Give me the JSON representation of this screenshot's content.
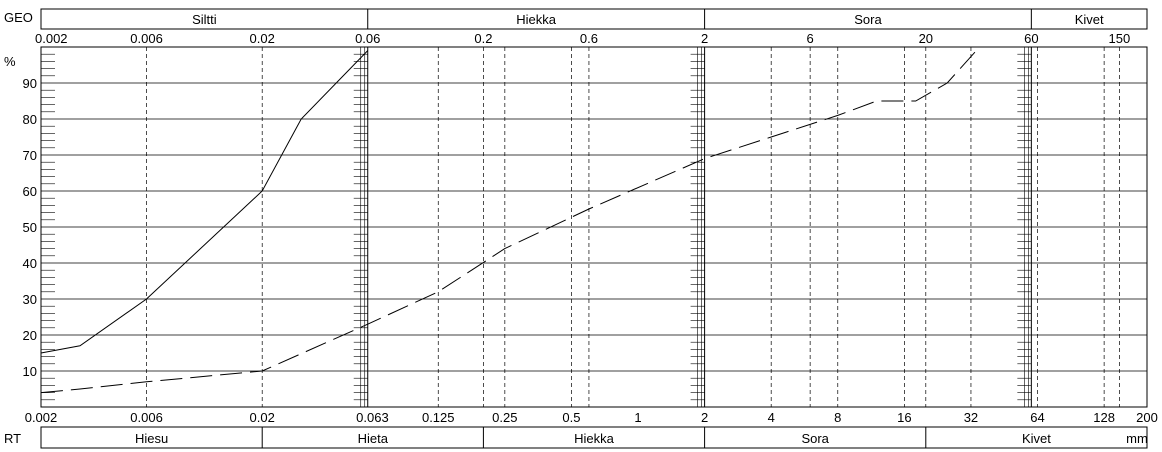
{
  "chart_data": {
    "type": "line",
    "title": "",
    "x_scale": "log",
    "xlim": [
      0.002,
      200
    ],
    "ylim": [
      0,
      100
    ],
    "ylabel": "%",
    "y_ticks": [
      10,
      20,
      30,
      40,
      50,
      60,
      70,
      80,
      90
    ],
    "grid": true,
    "top_header_label": "GEO",
    "top_classes": [
      {
        "label": "Siltti",
        "from": 0.002,
        "to": 0.06
      },
      {
        "label": "Hiekka",
        "from": 0.06,
        "to": 2
      },
      {
        "label": "Sora",
        "from": 2,
        "to": 60
      },
      {
        "label": "Kivet",
        "from": 60,
        "to": 200
      }
    ],
    "top_ticks": [
      {
        "label": "0.002",
        "x": 0.002
      },
      {
        "label": "0.006",
        "x": 0.006
      },
      {
        "label": "0.02",
        "x": 0.02
      },
      {
        "label": "0.06",
        "x": 0.06
      },
      {
        "label": "0.2",
        "x": 0.2
      },
      {
        "label": "0.6",
        "x": 0.6
      },
      {
        "label": "2",
        "x": 2
      },
      {
        "label": "6",
        "x": 6
      },
      {
        "label": "20",
        "x": 20
      },
      {
        "label": "60",
        "x": 60
      },
      {
        "label": "150",
        "x": 150
      }
    ],
    "bottom_header_label": "RT",
    "bottom_classes": [
      {
        "label": "Hiesu",
        "from": 0.002,
        "to": 0.02
      },
      {
        "label": "Hieta",
        "from": 0.02,
        "to": 0.2
      },
      {
        "label": "Hiekka",
        "from": 0.2,
        "to": 2
      },
      {
        "label": "Sora",
        "from": 2,
        "to": 20
      },
      {
        "label": "Kivet",
        "from": 20,
        "to": 200
      }
    ],
    "bottom_unit": "mm",
    "bottom_ticks": [
      {
        "label": "0.002",
        "x": 0.002
      },
      {
        "label": "0.006",
        "x": 0.006
      },
      {
        "label": "0.02",
        "x": 0.02
      },
      {
        "label": "0.063",
        "x": 0.063
      },
      {
        "label": "0.125",
        "x": 0.125
      },
      {
        "label": "0.25",
        "x": 0.25
      },
      {
        "label": "0.5",
        "x": 0.5
      },
      {
        "label": "1",
        "x": 1
      },
      {
        "label": "2",
        "x": 2
      },
      {
        "label": "4",
        "x": 4
      },
      {
        "label": "8",
        "x": 8
      },
      {
        "label": "16",
        "x": 16
      },
      {
        "label": "32",
        "x": 32
      },
      {
        "label": "64",
        "x": 64
      },
      {
        "label": "128",
        "x": 128
      },
      {
        "label": "200",
        "x": 200
      }
    ],
    "series": [
      {
        "style": "solid",
        "points": [
          [
            0.002,
            15
          ],
          [
            0.003,
            17
          ],
          [
            0.006,
            30
          ],
          [
            0.02,
            60
          ],
          [
            0.03,
            80
          ],
          [
            0.06,
            99
          ]
        ]
      },
      {
        "style": "dashed",
        "points": [
          [
            0.002,
            4
          ],
          [
            0.003,
            5
          ],
          [
            0.006,
            7
          ],
          [
            0.02,
            10
          ],
          [
            0.06,
            23
          ],
          [
            0.125,
            32
          ],
          [
            0.25,
            44
          ],
          [
            0.6,
            55
          ],
          [
            2,
            69
          ],
          [
            4,
            75
          ],
          [
            8,
            81
          ],
          [
            12,
            85
          ],
          [
            18,
            85
          ],
          [
            25,
            90
          ],
          [
            35,
            100
          ]
        ]
      }
    ]
  }
}
